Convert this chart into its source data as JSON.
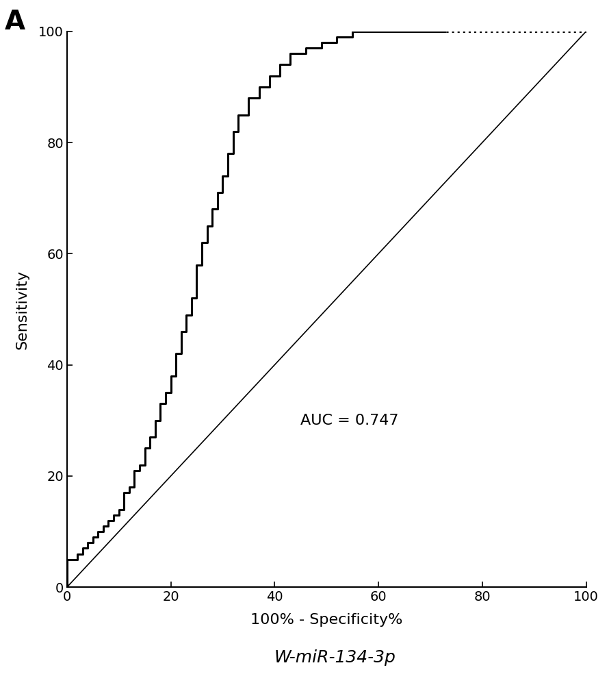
{
  "title_panel": "A",
  "xlabel": "100% - Specificity%",
  "ylabel": "Sensitivity",
  "subtitle": "W-miR-134-3p",
  "auc_text": "AUC = 0.747",
  "auc_x": 45,
  "auc_y": 30,
  "xlim": [
    0,
    100
  ],
  "ylim": [
    0,
    100
  ],
  "xticks": [
    0,
    20,
    40,
    60,
    80,
    100
  ],
  "yticks": [
    0,
    20,
    40,
    60,
    80,
    100
  ],
  "roc_x": [
    0,
    0,
    2,
    2,
    3,
    3,
    4,
    4,
    5,
    5,
    6,
    6,
    7,
    7,
    8,
    8,
    9,
    9,
    10,
    10,
    11,
    11,
    12,
    12,
    13,
    13,
    14,
    14,
    15,
    15,
    16,
    16,
    17,
    17,
    18,
    18,
    19,
    19,
    20,
    20,
    21,
    21,
    22,
    22,
    23,
    23,
    24,
    24,
    25,
    25,
    26,
    26,
    27,
    27,
    28,
    28,
    29,
    29,
    30,
    30,
    31,
    31,
    32,
    32,
    33,
    33,
    35,
    35,
    37,
    37,
    39,
    39,
    41,
    41,
    43,
    43,
    46,
    46,
    49,
    49,
    52,
    52,
    55,
    55,
    58,
    58,
    61,
    61,
    64,
    64,
    67,
    67,
    70,
    70,
    73,
    73,
    100
  ],
  "roc_y": [
    0,
    5,
    5,
    6,
    6,
    7,
    7,
    8,
    8,
    9,
    9,
    10,
    10,
    11,
    11,
    12,
    12,
    13,
    13,
    14,
    14,
    17,
    17,
    18,
    18,
    21,
    21,
    22,
    22,
    25,
    25,
    27,
    27,
    30,
    30,
    33,
    33,
    35,
    35,
    38,
    38,
    42,
    42,
    46,
    46,
    49,
    49,
    52,
    52,
    58,
    58,
    62,
    62,
    65,
    65,
    68,
    68,
    71,
    71,
    74,
    74,
    78,
    78,
    82,
    82,
    85,
    85,
    88,
    88,
    90,
    90,
    92,
    92,
    94,
    94,
    96,
    96,
    97,
    97,
    98,
    98,
    99,
    99,
    100,
    100,
    100,
    100,
    100,
    100,
    100,
    100,
    100,
    100,
    100,
    100,
    100,
    100
  ],
  "dotted_start_x": 73,
  "ref_line_color": "#000000",
  "roc_line_color": "#000000",
  "background_color": "#ffffff",
  "roc_linewidth": 2.2,
  "ref_linewidth": 1.2,
  "xlabel_fontsize": 16,
  "ylabel_fontsize": 16,
  "tick_fontsize": 14,
  "auc_fontsize": 16,
  "panel_label_fontsize": 28,
  "subtitle_fontsize": 18
}
